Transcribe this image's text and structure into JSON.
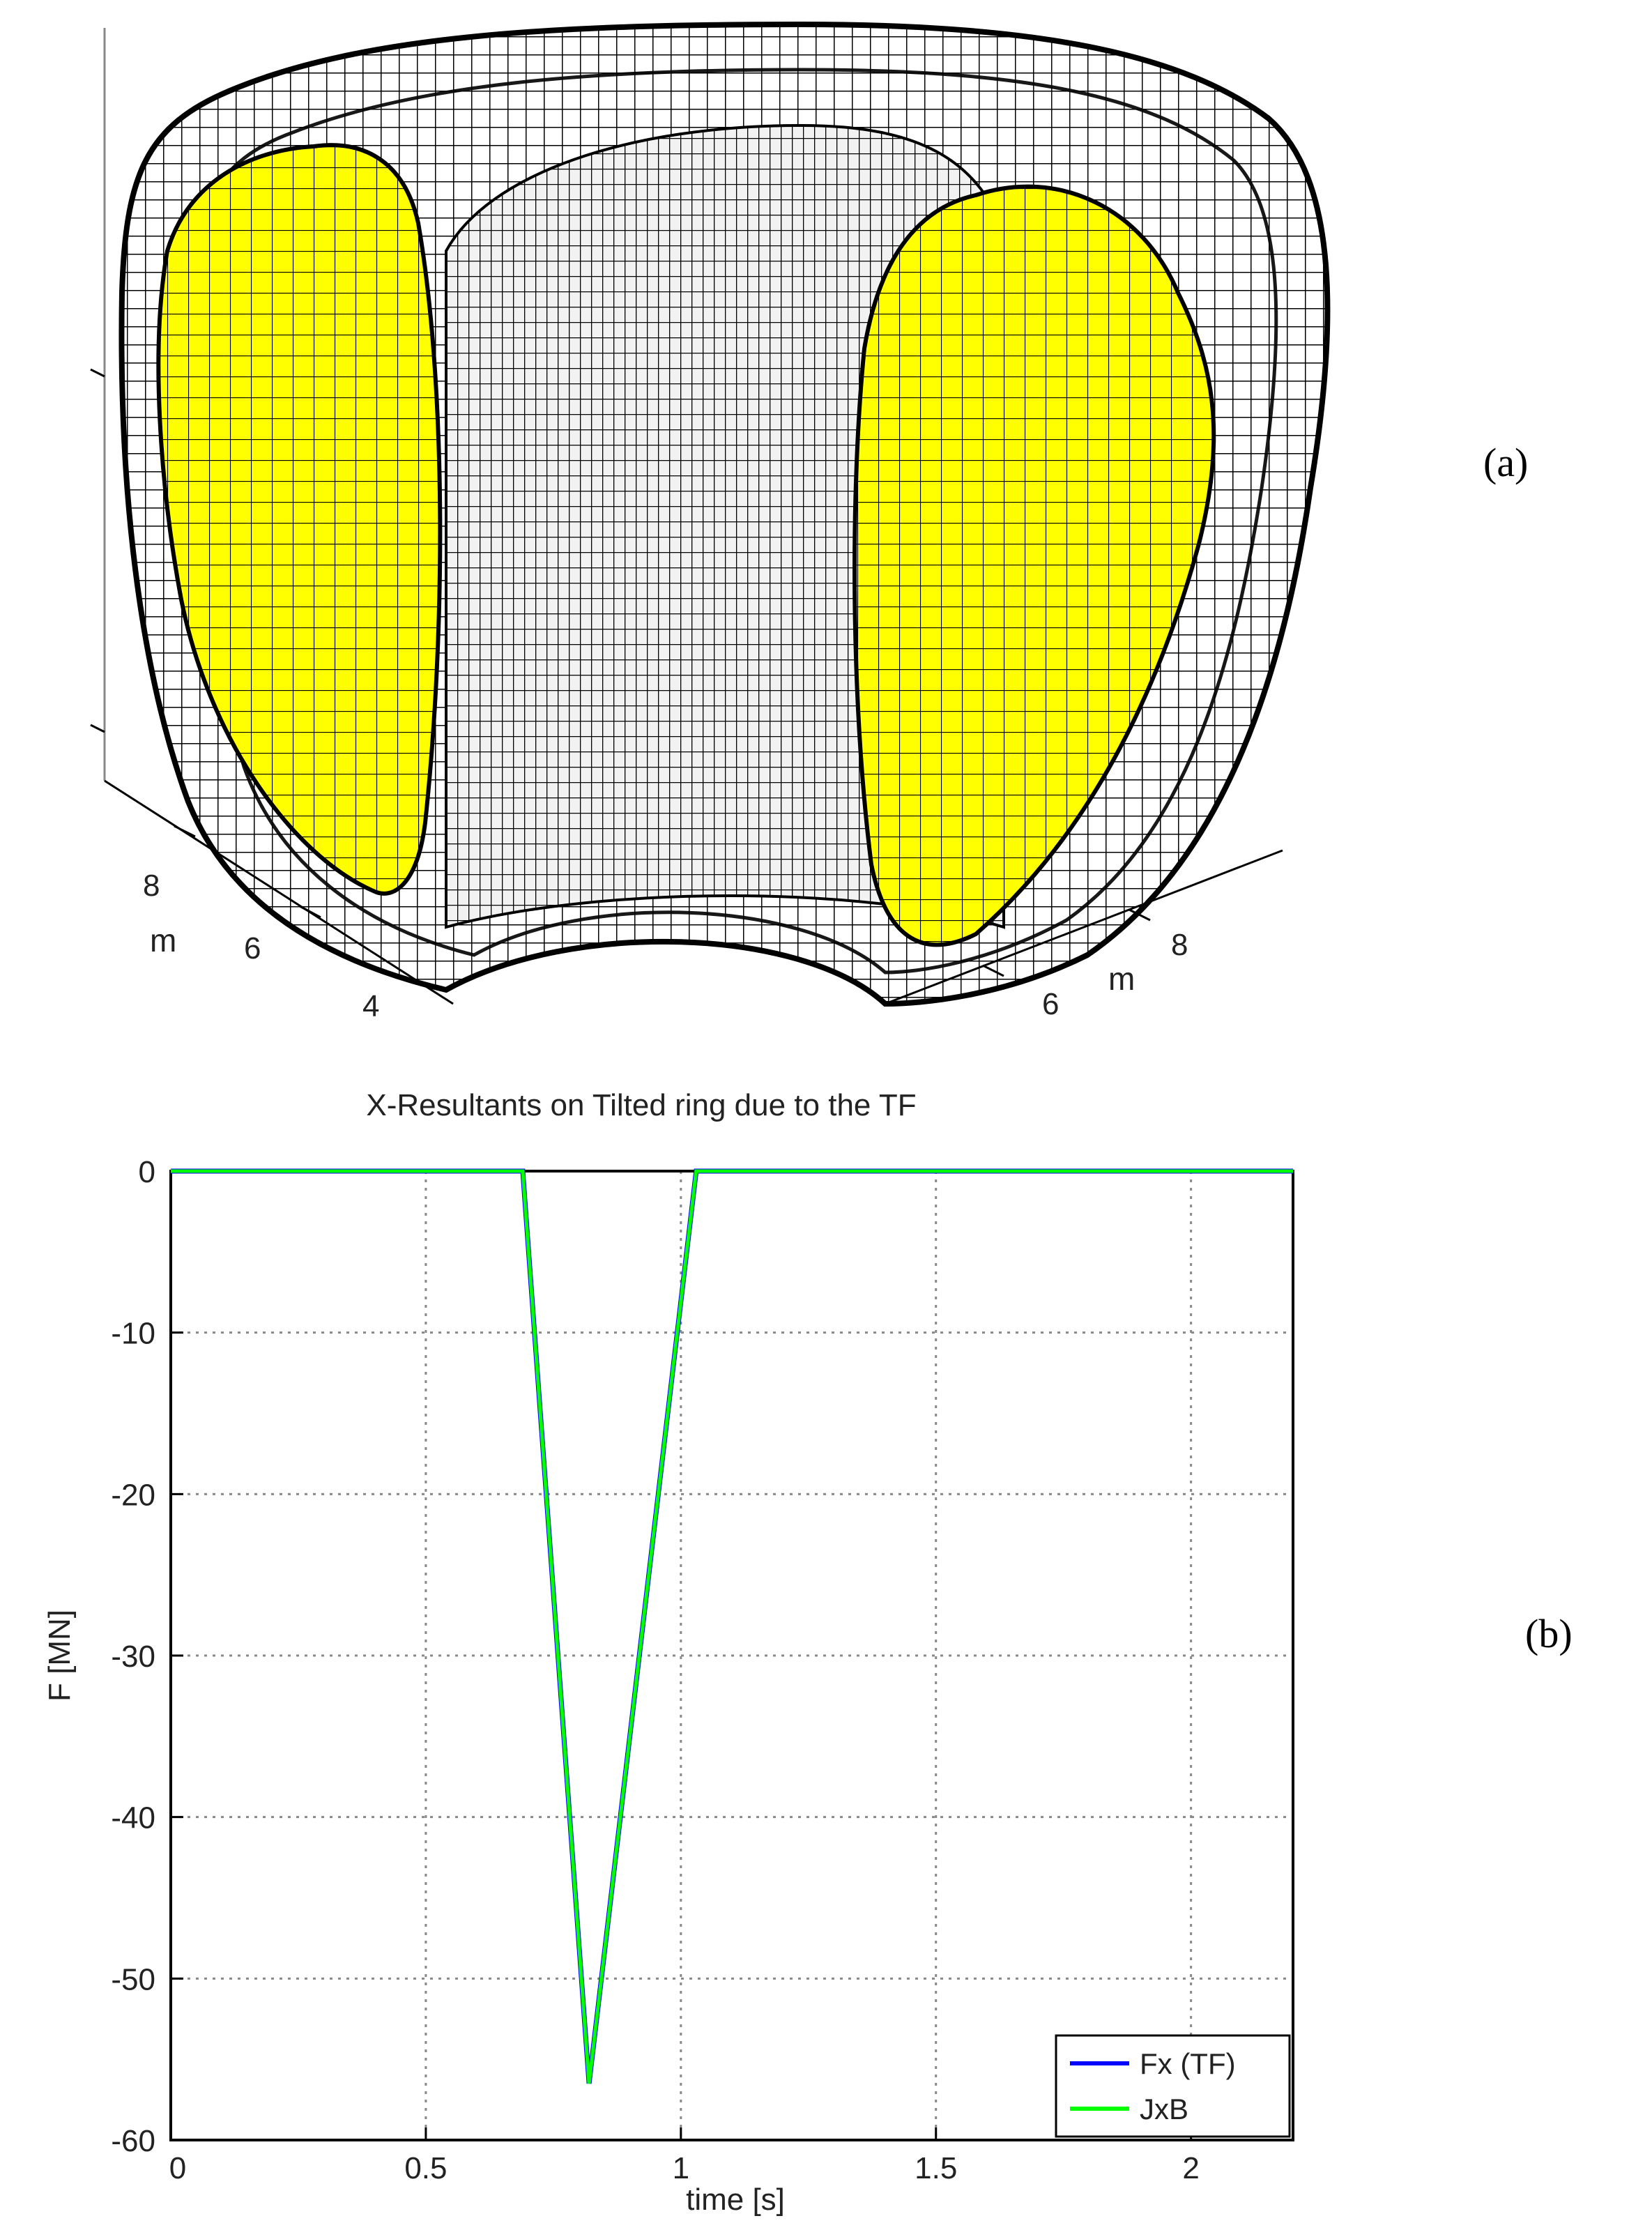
{
  "panel_a": {
    "label": "(a)",
    "axis_left": {
      "unit": "m",
      "ticks": [
        "8",
        "6",
        "4"
      ]
    },
    "axis_right": {
      "unit": "m",
      "ticks": [
        "8",
        "6"
      ]
    },
    "colors": {
      "plasma": "#ffff00",
      "mesh": "#000000",
      "surface": "#ffffff"
    }
  },
  "panel_b": {
    "label": "(b)"
  },
  "chart_data": {
    "type": "line",
    "title": "X-Resultants on Tilted ring due to the TF",
    "xlabel": "time [s]",
    "ylabel": "F [MN]",
    "xlim": [
      0,
      2.2
    ],
    "ylim": [
      -60,
      0
    ],
    "xticks": [
      0,
      0.5,
      1,
      1.5,
      2
    ],
    "xtick_labels": [
      "0",
      "0.5",
      "1",
      "1.5",
      "2"
    ],
    "yticks": [
      0,
      -10,
      -20,
      -30,
      -40,
      -50,
      -60
    ],
    "ytick_labels": [
      "0",
      "-10",
      "-20",
      "-30",
      "-40",
      "-50",
      "-60"
    ],
    "grid": true,
    "legend_position": "bottom-right",
    "series": [
      {
        "name": "Fx (TF)",
        "color": "#0000ff",
        "x": [
          0,
          0.69,
          0.82,
          1.03,
          2.2
        ],
        "y": [
          0,
          0,
          -56.5,
          0,
          0
        ]
      },
      {
        "name": "JxB",
        "color": "#00ff00",
        "x": [
          0,
          0.69,
          0.82,
          1.03,
          2.2
        ],
        "y": [
          0,
          0,
          -56.5,
          0,
          0
        ]
      }
    ]
  }
}
